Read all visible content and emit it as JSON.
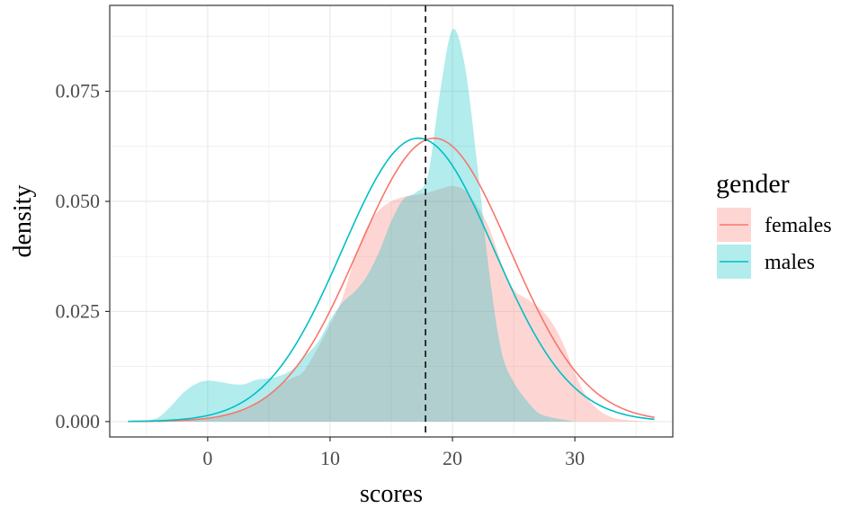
{
  "chart_data": {
    "type": "area",
    "title": "",
    "xlabel": "scores",
    "ylabel": "density",
    "xlim": [
      -8,
      38
    ],
    "ylim": [
      -0.0035,
      0.0945
    ],
    "x_ticks": [
      0,
      10,
      20,
      30
    ],
    "x_tick_labels": [
      "0",
      "10",
      "20",
      "30"
    ],
    "y_ticks": [
      0,
      0.025,
      0.05,
      0.075
    ],
    "y_tick_labels": [
      "0.000",
      "0.025",
      "0.050",
      "0.075"
    ],
    "grid": true,
    "legend": {
      "title": "gender",
      "position": "right",
      "entries": [
        "females",
        "males"
      ]
    },
    "colors": {
      "females": "#F8766D",
      "males": "#00BFC4",
      "vline": "#222222"
    },
    "reference_line": {
      "x": 17.8,
      "style": "dashed"
    },
    "series": [
      {
        "name": "females",
        "kind": "density",
        "points": [
          [
            -6,
            0
          ],
          [
            -4,
            0
          ],
          [
            -2,
            0.0002
          ],
          [
            0,
            0.0008
          ],
          [
            2,
            0.0018
          ],
          [
            4,
            0.004
          ],
          [
            6,
            0.0085
          ],
          [
            7,
            0.01
          ],
          [
            8,
            0.012
          ],
          [
            10,
            0.022
          ],
          [
            11,
            0.028
          ],
          [
            12,
            0.037
          ],
          [
            13,
            0.044
          ],
          [
            14,
            0.048
          ],
          [
            15,
            0.05
          ],
          [
            16,
            0.051
          ],
          [
            17,
            0.0515
          ],
          [
            18,
            0.052
          ],
          [
            19,
            0.0528
          ],
          [
            20,
            0.0535
          ],
          [
            21,
            0.0525
          ],
          [
            22,
            0.049
          ],
          [
            23,
            0.044
          ],
          [
            24,
            0.036
          ],
          [
            25,
            0.03
          ],
          [
            26,
            0.028
          ],
          [
            27,
            0.026
          ],
          [
            28,
            0.023
          ],
          [
            29,
            0.018
          ],
          [
            30,
            0.011
          ],
          [
            31,
            0.0055
          ],
          [
            32,
            0.0025
          ],
          [
            33,
            0.001
          ],
          [
            34,
            0.0004
          ],
          [
            36,
            0
          ]
        ]
      },
      {
        "name": "males",
        "kind": "density",
        "points": [
          [
            -6,
            0
          ],
          [
            -5,
            0.0002
          ],
          [
            -4,
            0.001
          ],
          [
            -3,
            0.0035
          ],
          [
            -2,
            0.0065
          ],
          [
            -1,
            0.0085
          ],
          [
            0,
            0.0093
          ],
          [
            1,
            0.009
          ],
          [
            2,
            0.0085
          ],
          [
            3,
            0.0085
          ],
          [
            4,
            0.0095
          ],
          [
            5,
            0.0098
          ],
          [
            6,
            0.0105
          ],
          [
            7,
            0.012
          ],
          [
            8,
            0.015
          ],
          [
            9,
            0.018
          ],
          [
            10,
            0.023
          ],
          [
            11,
            0.027
          ],
          [
            12,
            0.0295
          ],
          [
            13,
            0.033
          ],
          [
            14,
            0.0385
          ],
          [
            15,
            0.0455
          ],
          [
            16,
            0.0505
          ],
          [
            17,
            0.052
          ],
          [
            18,
            0.056
          ],
          [
            19,
            0.075
          ],
          [
            20,
            0.089
          ],
          [
            21,
            0.081
          ],
          [
            22,
            0.059
          ],
          [
            23,
            0.034
          ],
          [
            24,
            0.016
          ],
          [
            25,
            0.009
          ],
          [
            26,
            0.005
          ],
          [
            27,
            0.002
          ],
          [
            28,
            0.001
          ],
          [
            30,
            0
          ]
        ]
      },
      {
        "name": "females",
        "kind": "normal",
        "mean": 18.5,
        "sd": 6.2,
        "x_range": [
          -6.5,
          36.5
        ]
      },
      {
        "name": "males",
        "kind": "normal",
        "mean": 17.2,
        "sd": 6.2,
        "x_range": [
          -6.5,
          36.5
        ]
      }
    ]
  }
}
